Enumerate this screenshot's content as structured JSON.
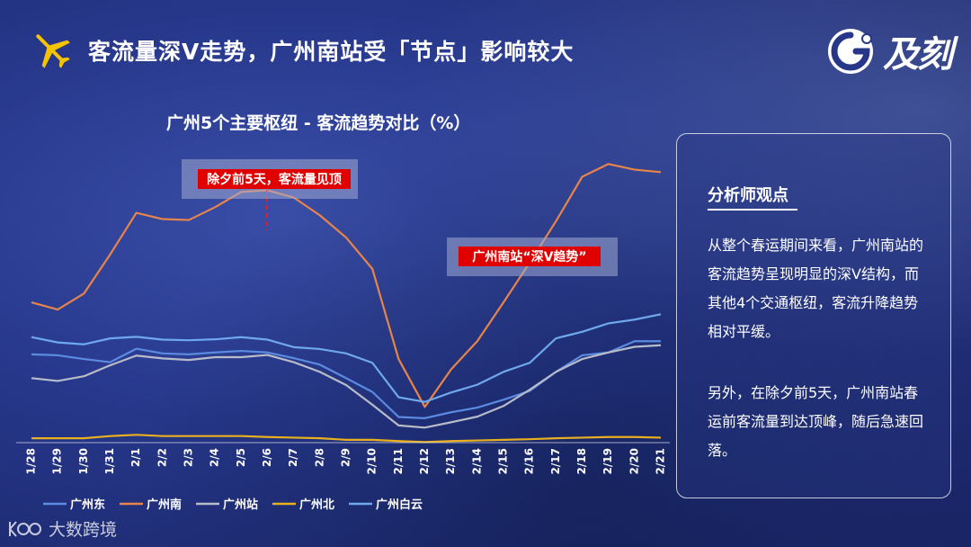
{
  "header": {
    "title": "客流量深V走势，广州南站受「节点」影响较大",
    "icon": "airplane-icon",
    "accent": "#f5c400"
  },
  "logo": {
    "text": "及刻"
  },
  "chart_title": "广州5个主要枢纽 - 客流趋势对比（%）",
  "annotations": {
    "peak_label": "除夕前5天，客流量见顶",
    "valley_label": "广州南站“深V趋势”"
  },
  "panel": {
    "title": "分析师观点",
    "p1": "从整个春运期间来看，广州南站的客流趋势呈现明显的深V结构，而其他4个交通枢纽，客流升降趋势相对平缓。",
    "p2": "另外，在除夕前5天，广州南站春运前客流量到达顶峰，随后急速回落。"
  },
  "footer": {
    "text": "大数跨境"
  },
  "chart_data": {
    "type": "line",
    "title": "广州5个主要枢纽 - 客流趋势对比（%）",
    "xlabel": "",
    "ylabel": "",
    "ylim": [
      0,
      100
    ],
    "grid": false,
    "legend": "bottom-left",
    "categories": [
      "1/28",
      "1/29",
      "1/30",
      "1/31",
      "2/1",
      "2/2",
      "2/3",
      "2/4",
      "2/5",
      "2/6",
      "2/7",
      "2/8",
      "2/9",
      "2/10",
      "2/11",
      "2/12",
      "2/13",
      "2/14",
      "2/15",
      "2/16",
      "2/17",
      "2/18",
      "2/19",
      "2/20",
      "2/21"
    ],
    "series": [
      {
        "name": "广州东",
        "color": "#5b8be0",
        "values": [
          28.2,
          27.9,
          26.7,
          25.7,
          30.0,
          28.5,
          28.2,
          28.8,
          29.3,
          28.8,
          27.0,
          24.9,
          20.6,
          16.2,
          8.2,
          7.8,
          9.7,
          11.2,
          13.7,
          16.5,
          22.6,
          27.9,
          28.8,
          32.4,
          32.4
        ]
      },
      {
        "name": "广州南",
        "color": "#e8844a",
        "values": [
          44.8,
          42.5,
          47.6,
          60.1,
          73.4,
          71.4,
          71.1,
          75.2,
          80.1,
          80.6,
          78.3,
          72.6,
          65.5,
          55.5,
          26.7,
          11.4,
          23.4,
          32.4,
          44.8,
          57.5,
          70.7,
          84.9,
          89.0,
          87.2,
          86.4
        ]
      },
      {
        "name": "广州站",
        "color": "#b8bcc8",
        "values": [
          20.6,
          19.7,
          21.2,
          24.7,
          27.8,
          26.9,
          26.4,
          27.3,
          27.3,
          28.0,
          25.7,
          22.6,
          18.4,
          12.1,
          5.5,
          4.8,
          6.5,
          8.3,
          11.7,
          16.9,
          22.6,
          26.7,
          28.8,
          30.6,
          31.1
        ]
      },
      {
        "name": "广州北",
        "color": "#e8b020",
        "values": [
          1.4,
          1.4,
          1.4,
          2.1,
          2.5,
          2.1,
          2.1,
          2.1,
          2.1,
          1.8,
          1.6,
          1.4,
          0.9,
          0.9,
          0.5,
          0.2,
          0.5,
          0.7,
          0.9,
          1.1,
          1.4,
          1.6,
          1.8,
          1.8,
          1.6
        ]
      },
      {
        "name": "广州白云",
        "color": "#6fa8ec",
        "values": [
          33.7,
          32.0,
          31.4,
          33.3,
          33.8,
          32.9,
          32.7,
          33.0,
          33.7,
          32.9,
          30.5,
          29.9,
          28.5,
          25.5,
          14.5,
          13.0,
          16.0,
          18.5,
          22.6,
          25.5,
          33.3,
          35.4,
          38.1,
          39.3,
          41.0
        ]
      }
    ]
  }
}
